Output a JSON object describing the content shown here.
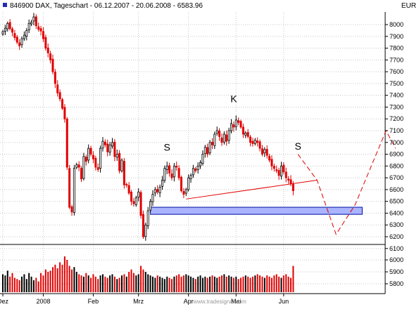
{
  "header": {
    "title": "846900  DAX, Tageschart - 06.12.2007 - 20.06.2008 - 6583.96",
    "currency": "EUR"
  },
  "colors": {
    "up": "#000000",
    "down": "#e00000",
    "grid": "#c8c8c8",
    "trend": "#e00000",
    "zone_fill": "#aab4ff",
    "zone_stroke": "#1f2fb0",
    "projection": "#e00000"
  },
  "watermark": "www.tradesignal.com",
  "chart_data": {
    "type": "candlestick",
    "title": "846900  DAX, Tageschart - 06.12.2007 - 20.06.2008 - 6583.96",
    "x_tick_labels": [
      "Dez",
      "2008",
      "Feb",
      "Mrz",
      "Apr",
      "Mai",
      "Jun"
    ],
    "x_tick_index": [
      0,
      17,
      38,
      57,
      78,
      98,
      118
    ],
    "price_axis": {
      "min": 6100,
      "max": 8100,
      "ticks": [
        6100,
        6200,
        6300,
        6400,
        6500,
        6600,
        6700,
        6800,
        6900,
        7000,
        7100,
        7200,
        7300,
        7400,
        7500,
        7600,
        7700,
        7800,
        7900,
        8000
      ]
    },
    "volume_axis": {
      "min": 5700,
      "max": 6050,
      "ticks": [
        5800,
        5900,
        6000
      ]
    },
    "grid": true,
    "close": [
      7940,
      7970,
      8010,
      7965,
      7935,
      7890,
      7850,
      7820,
      7880,
      7910,
      7950,
      8010,
      8020,
      8065,
      7990,
      7960,
      7945,
      7880,
      7800,
      7760,
      7700,
      7600,
      7500,
      7420,
      7370,
      7290,
      7200,
      6790,
      6450,
      6410,
      6780,
      6810,
      6790,
      6690,
      6880,
      6840,
      6950,
      6900,
      6860,
      6790,
      6770,
      6950,
      7010,
      6980,
      6920,
      6980,
      7000,
      6880,
      6900,
      6760,
      6850,
      6640,
      6640,
      6570,
      6500,
      6480,
      6530,
      6580,
      6380,
      6200,
      6300,
      6420,
      6500,
      6560,
      6600,
      6580,
      6620,
      6680,
      6780,
      6800,
      6740,
      6700,
      6800,
      6790,
      6700,
      6590,
      6560,
      6600,
      6700,
      6720,
      6780,
      6760,
      6800,
      6830,
      6900,
      6960,
      6900,
      7000,
      6980,
      7070,
      7100,
      7050,
      7000,
      7070,
      7010,
      7100,
      7160,
      7130,
      7190,
      7170,
      7130,
      7070,
      7080,
      7050,
      7000,
      6990,
      7020,
      7000,
      6950,
      6900,
      6940,
      6890,
      6850,
      6800,
      6780,
      6760,
      6720,
      6800,
      6750,
      6700,
      6680,
      6650,
      6590
    ],
    "volume": [
      5880,
      5870,
      5910,
      5860,
      5890,
      5850,
      5840,
      5830,
      5860,
      5880,
      5840,
      5890,
      5860,
      5830,
      5850,
      5820,
      5890,
      5870,
      5920,
      5900,
      5910,
      5940,
      5960,
      5930,
      5980,
      5960,
      6030,
      6000,
      5950,
      5920,
      5940,
      5900,
      5880,
      5870,
      5860,
      5890,
      5870,
      5850,
      5880,
      5860,
      5840,
      5870,
      5880,
      5860,
      5850,
      5870,
      5880,
      5860,
      5840,
      5850,
      5870,
      5880,
      5860,
      5900,
      5920,
      5890,
      5870,
      5880,
      5950,
      5920,
      5900,
      5880,
      5870,
      5860,
      5850,
      5870,
      5860,
      5850,
      5840,
      5860,
      5850,
      5840,
      5860,
      5870,
      5880,
      5860,
      5870,
      5880,
      5870,
      5860,
      5850,
      5840,
      5860,
      5870,
      5850,
      5860,
      5850,
      5860,
      5870,
      5860,
      5850,
      5860,
      5870,
      5880,
      5860,
      5870,
      5860,
      5850,
      5860,
      5840,
      5850,
      5860,
      5870,
      5860,
      5850,
      5860,
      5870,
      5880,
      5870,
      5860,
      5850,
      5870,
      5860,
      5850,
      5870,
      5880,
      5860,
      5850,
      5870,
      5880,
      5860,
      5850,
      5950
    ],
    "annotations": {
      "labels": [
        {
          "text": "S",
          "index": 69,
          "price": 6930
        },
        {
          "text": "K",
          "index": 97,
          "price": 7340
        },
        {
          "text": "S",
          "index": 124,
          "price": 6940
        }
      ],
      "neckline": {
        "from": {
          "index": 77,
          "price": 6520
        },
        "to": {
          "index": 132,
          "price": 6680
        }
      },
      "support_zone": {
        "from_index": 62,
        "to_index": 151,
        "price_low": 6390,
        "price_high": 6450
      },
      "projection": [
        {
          "index": 124,
          "price": 6900
        },
        {
          "index": 132,
          "price": 6680
        },
        {
          "index": 140,
          "price": 6220
        },
        {
          "index": 148,
          "price": 6470
        },
        {
          "index": 161,
          "price": 7100
        },
        {
          "index": 165,
          "price": 6950
        }
      ]
    }
  }
}
